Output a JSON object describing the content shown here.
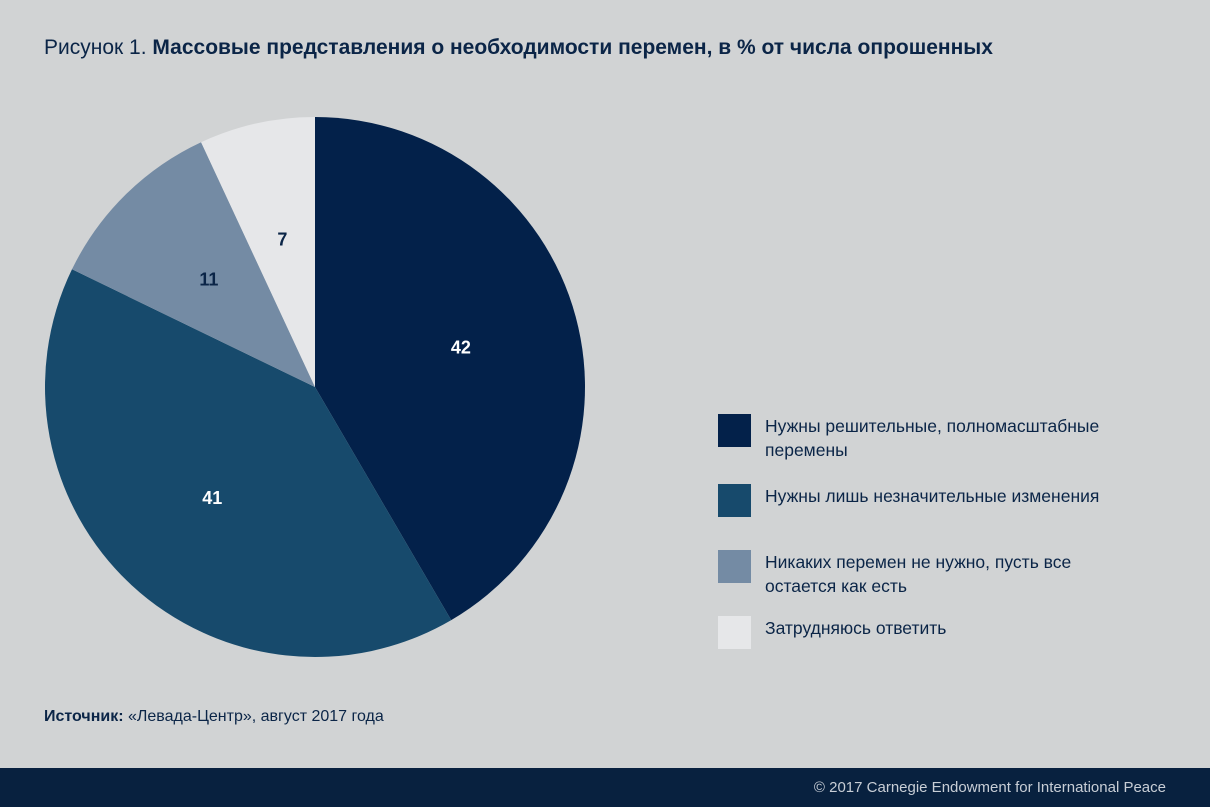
{
  "header": {
    "figure_label": "Рисунок 1.",
    "title": "Массовые представления о необходимости перемен, в % от числа опрошенных"
  },
  "chart_data": {
    "type": "pie",
    "title": "Массовые представления о необходимости перемен, в % от числа опрошенных",
    "slices": [
      {
        "label": "Нужны решительные, полномасштабные перемены",
        "value": 42,
        "color": "#03214a"
      },
      {
        "label": "Нужны лишь незначительные изменения",
        "value": 41,
        "color": "#174a6c"
      },
      {
        "label": "Никаких перемен не нужно, пусть все остается как есть",
        "value": 11,
        "color": "#748ba4"
      },
      {
        "label": "Затрудняюсь ответить",
        "value": 7,
        "color": "#e6e7e9"
      }
    ],
    "label_colors": [
      "#ffffff",
      "#ffffff",
      "#0b2547",
      "#0b2547"
    ],
    "legend_position": "right"
  },
  "legend": {
    "items": [
      {
        "label": "Нужны решительные, полномасштабные перемены"
      },
      {
        "label": "Нужны лишь незначительные изменения"
      },
      {
        "label": "Никаких перемен не нужно, пусть все остается как есть"
      },
      {
        "label": "Затрудняюсь ответить"
      }
    ]
  },
  "source": {
    "label": "Источник:",
    "text": "«Левада-Центр», август 2017 года"
  },
  "footer": {
    "copyright": "© 2017 Carnegie Endowment for International Peace"
  }
}
